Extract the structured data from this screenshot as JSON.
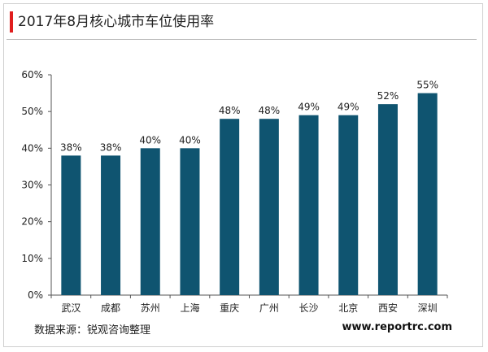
{
  "header": {
    "title": "2017年8月核心城市车位使用率"
  },
  "footer": {
    "source": "数据来源：锐观咨询整理",
    "website": "www.reportrc.com"
  },
  "colors": {
    "bar": "#0f5470",
    "accent": "#e01e1e",
    "axis": "#555555"
  },
  "chart_data": {
    "type": "bar",
    "title": "2017年8月核心城市车位使用率",
    "categories": [
      "武汉",
      "成都",
      "苏州",
      "上海",
      "重庆",
      "广州",
      "长沙",
      "北京",
      "西安",
      "深圳"
    ],
    "values": [
      38,
      38,
      40,
      40,
      48,
      48,
      49,
      49,
      52,
      55
    ],
    "value_labels": [
      "38%",
      "38%",
      "40%",
      "40%",
      "48%",
      "48%",
      "49%",
      "49%",
      "52%",
      "55%"
    ],
    "ylim": [
      0,
      60
    ],
    "y_ticks": [
      "0%",
      "10%",
      "20%",
      "30%",
      "40%",
      "50%",
      "60%"
    ],
    "grid": false,
    "legend": "none"
  }
}
